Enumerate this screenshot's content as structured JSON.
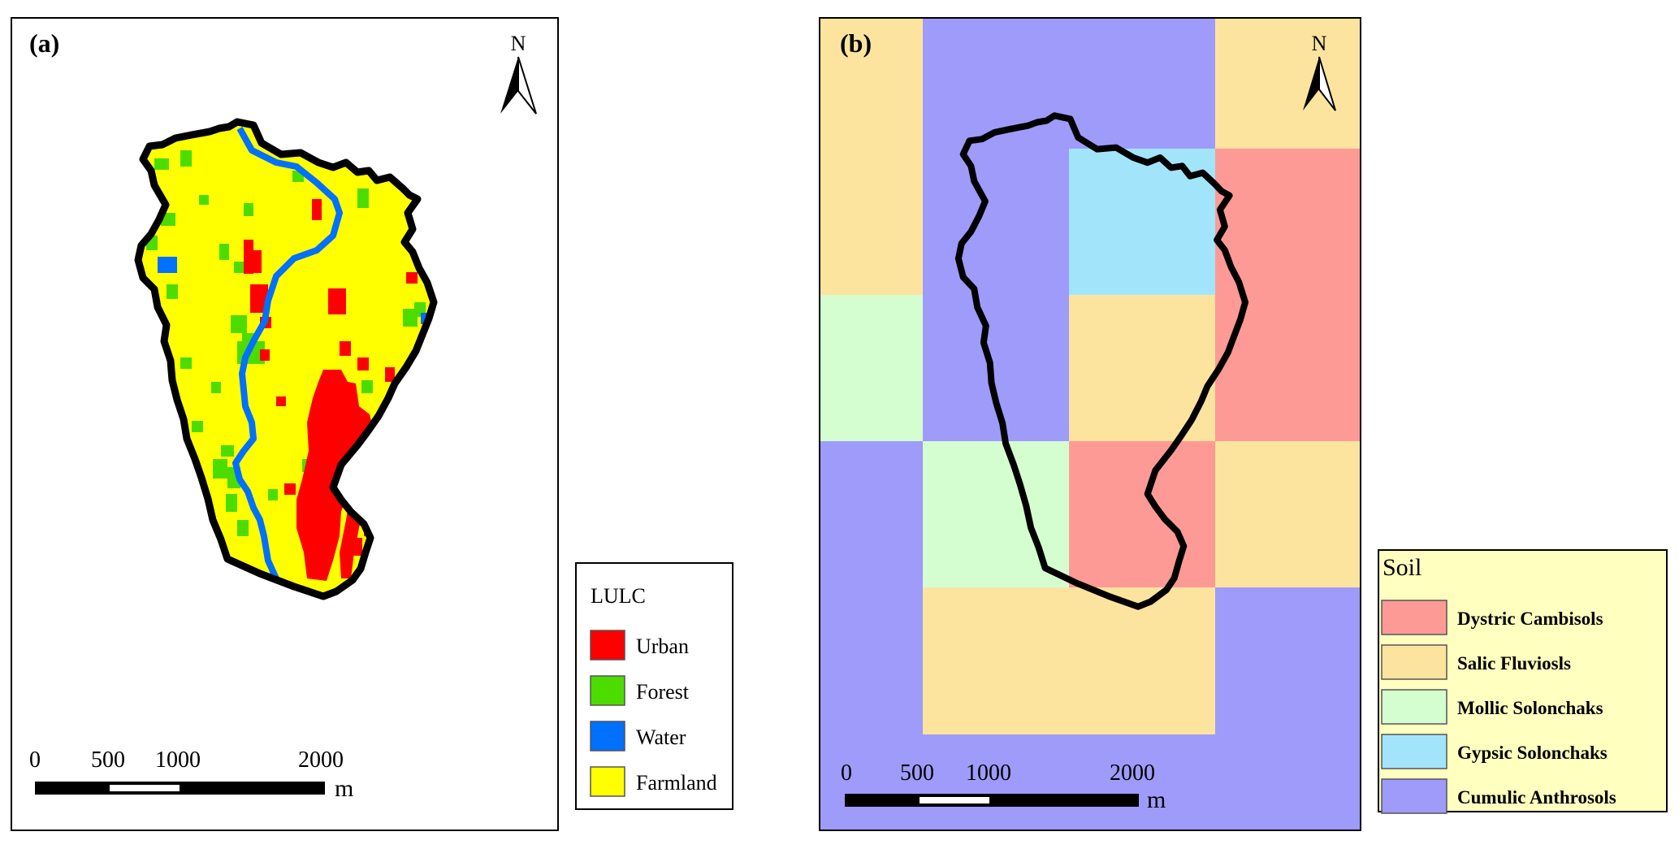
{
  "panel_a": {
    "label": "(a)",
    "north_label": "N",
    "legend": {
      "title": "LULC",
      "items": [
        {
          "label": "Urban",
          "color": "#ff0000"
        },
        {
          "label": "Forest",
          "color": "#4cdc00"
        },
        {
          "label": "Water",
          "color": "#0070ff"
        },
        {
          "label": "Farmland",
          "color": "#ffff00"
        }
      ]
    },
    "scale": {
      "ticks": [
        "0",
        "500",
        "1000",
        "2000"
      ],
      "unit": "m"
    }
  },
  "panel_b": {
    "label": "(b)",
    "north_label": "N",
    "legend": {
      "title": "Soil",
      "items": [
        {
          "label": "Dystric Cambisols",
          "color": "#fd9a96"
        },
        {
          "label": "Salic Fluviosls",
          "color": "#fde49e"
        },
        {
          "label": "Mollic Solonchaks",
          "color": "#d4fdd0"
        },
        {
          "label": "Gypsic Solonchaks",
          "color": "#a2e5fa"
        },
        {
          "label": "Cumulic Anthrosols",
          "color": "#9e9bfa"
        }
      ]
    },
    "scale": {
      "ticks": [
        "0",
        "500",
        "1000",
        "2000"
      ],
      "unit": "m"
    }
  }
}
